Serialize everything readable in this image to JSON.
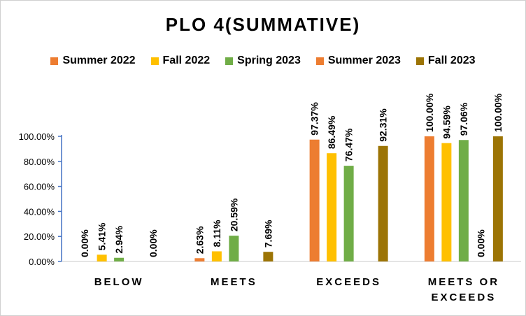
{
  "chart_data": {
    "type": "bar",
    "title": "PLO 4(SUMMATIVE)",
    "categories": [
      [
        "BELOW"
      ],
      [
        "MEETS"
      ],
      [
        "EXCEEDS"
      ],
      [
        "MEETS OR",
        "EXCEEDS"
      ]
    ],
    "series": [
      {
        "name": "Summer 2022",
        "color": "#ED7D31",
        "values": [
          0,
          2.63,
          97.37,
          100
        ],
        "labels": [
          "0.00%",
          "2.63%",
          "97.37%",
          "100.00%"
        ]
      },
      {
        "name": "Fall 2022",
        "color": "#FFC000",
        "values": [
          5.41,
          8.11,
          86.49,
          94.59
        ],
        "labels": [
          "5.41%",
          "8.11%",
          "86.49%",
          "94.59%"
        ]
      },
      {
        "name": "Spring 2023",
        "color": "#70AD47",
        "values": [
          2.94,
          20.59,
          76.47,
          97.06
        ],
        "labels": [
          "2.94%",
          "20.59%",
          "76.47%",
          "97.06%"
        ]
      },
      {
        "name": "Summer 2023",
        "color": "#ED7D31",
        "values": [
          null,
          null,
          null,
          0
        ],
        "labels": [
          "",
          "",
          "",
          "0.00%"
        ]
      },
      {
        "name": "Fall 2023",
        "color": "#9C7405",
        "values": [
          0,
          7.69,
          92.31,
          100
        ],
        "labels": [
          "0.00%",
          "7.69%",
          "92.31%",
          "100.00%"
        ]
      }
    ],
    "y_ticks": [
      "0.00%",
      "20.00%",
      "40.00%",
      "60.00%",
      "80.00%",
      "100.00%"
    ],
    "ylim": [
      0,
      100
    ],
    "grid": false,
    "legend_position": "top"
  }
}
